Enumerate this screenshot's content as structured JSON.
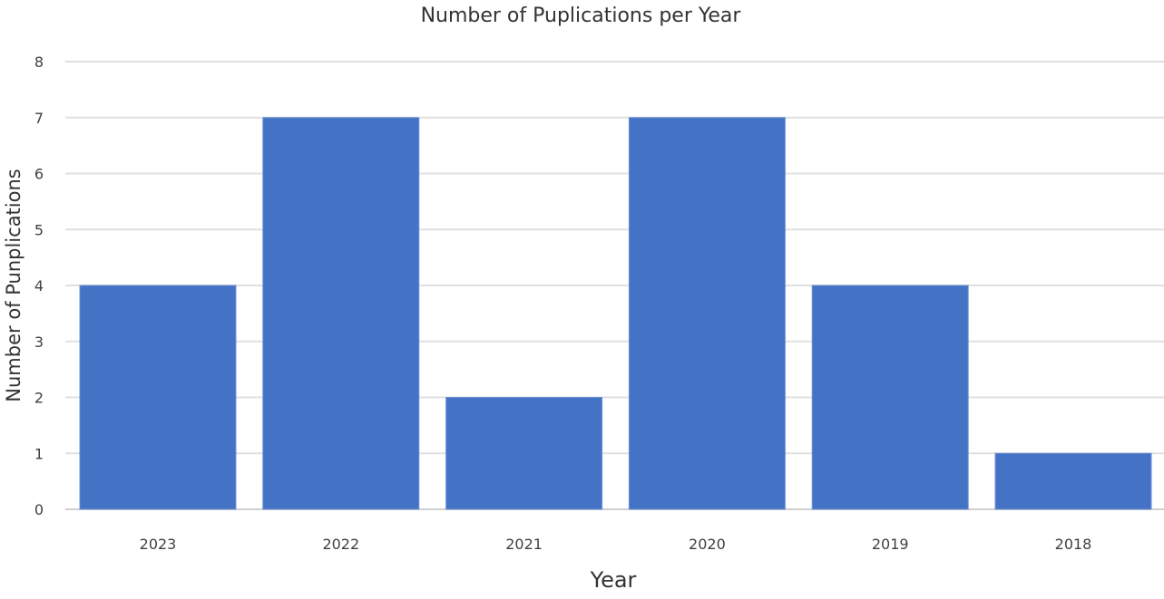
{
  "chart_data": {
    "type": "bar",
    "title": "Number of Puplications per Year",
    "xlabel": "Year",
    "ylabel": "Number of Punplications",
    "categories": [
      "2023",
      "2022",
      "2021",
      "2020",
      "2019",
      "2018"
    ],
    "values": [
      4,
      7,
      2,
      7,
      4,
      1
    ],
    "ylim": [
      0,
      8
    ],
    "yticks": [
      "0",
      "1",
      "2",
      "3",
      "4",
      "5",
      "6",
      "7",
      "8"
    ],
    "grid": true,
    "legend": "none",
    "bar_color": "#4472C4"
  }
}
